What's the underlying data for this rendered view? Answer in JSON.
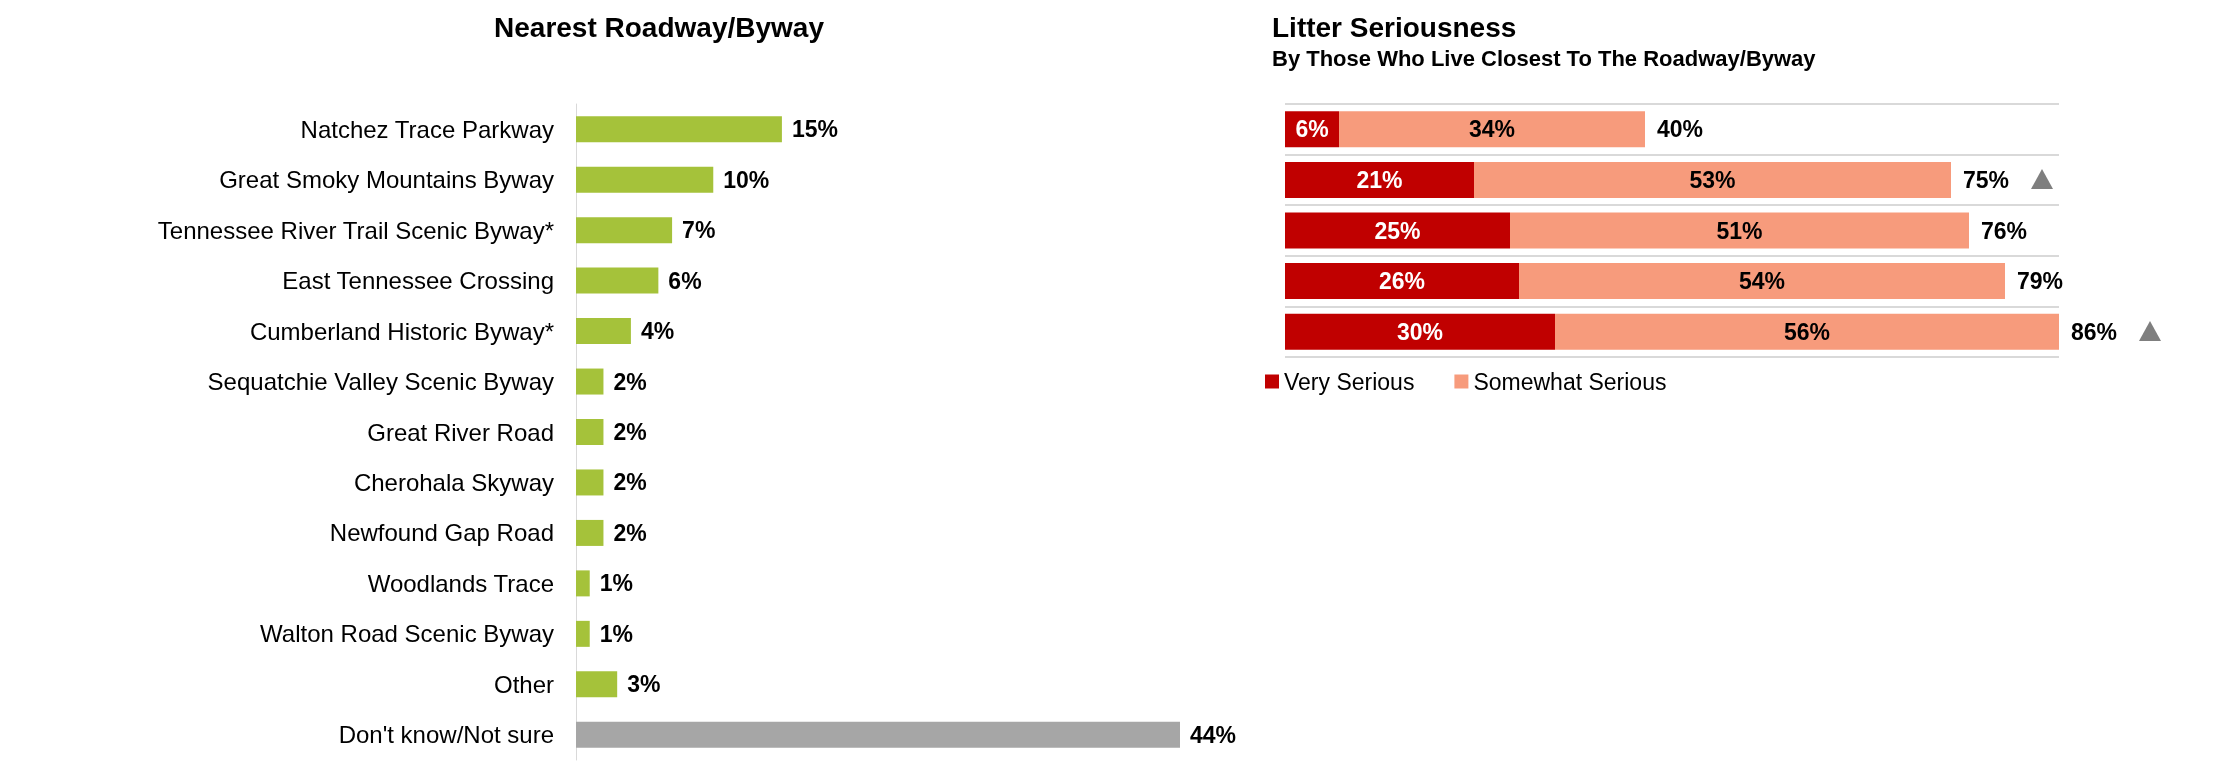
{
  "chart_data": [
    {
      "type": "bar",
      "orientation": "horizontal",
      "title": "Nearest Roadway/Byway",
      "categories": [
        "Natchez Trace Parkway",
        "Great Smoky Mountains Byway",
        "Tennessee River Trail Scenic Byway*",
        "East Tennessee Crossing",
        "Cumberland Historic Byway*",
        "Sequatchie Valley Scenic Byway",
        "Great River Road",
        "Cherohala Skyway",
        "Newfound Gap Road",
        "Woodlands Trace",
        "Walton Road Scenic Byway",
        "Other",
        "Don't know/Not sure"
      ],
      "values": [
        15,
        10,
        7,
        6,
        4,
        2,
        2,
        2,
        2,
        1,
        1,
        3,
        44
      ],
      "value_labels": [
        "15%",
        "10%",
        "7%",
        "6%",
        "4%",
        "2%",
        "2%",
        "2%",
        "2%",
        "1%",
        "1%",
        "3%",
        "44%"
      ],
      "colors": [
        "#a5c23a",
        "#a5c23a",
        "#a5c23a",
        "#a5c23a",
        "#a5c23a",
        "#a5c23a",
        "#a5c23a",
        "#a5c23a",
        "#a5c23a",
        "#a5c23a",
        "#a5c23a",
        "#a5c23a",
        "#a6a6a6"
      ],
      "legend": false
    },
    {
      "type": "bar",
      "orientation": "horizontal",
      "stacked": true,
      "title": "Litter Seriousness",
      "subtitle": "By Those Who Live Closest To The Roadway/Byway",
      "categories": [
        null,
        null,
        null,
        null,
        null
      ],
      "series": [
        {
          "name": "Very Serious",
          "color": "#c00000",
          "values": [
            6,
            21,
            25,
            26,
            30
          ],
          "value_labels": [
            "6%",
            "21%",
            "25%",
            "26%",
            "30%"
          ]
        },
        {
          "name": "Somewhat Serious",
          "color": "#f79b7c",
          "values": [
            34,
            53,
            51,
            54,
            56
          ],
          "value_labels": [
            "34%",
            "53%",
            "51%",
            "54%",
            "56%"
          ]
        }
      ],
      "totals": [
        "40%",
        "75%",
        "76%",
        "79%",
        "86%"
      ],
      "grid": "y",
      "legend": "bottom"
    }
  ]
}
